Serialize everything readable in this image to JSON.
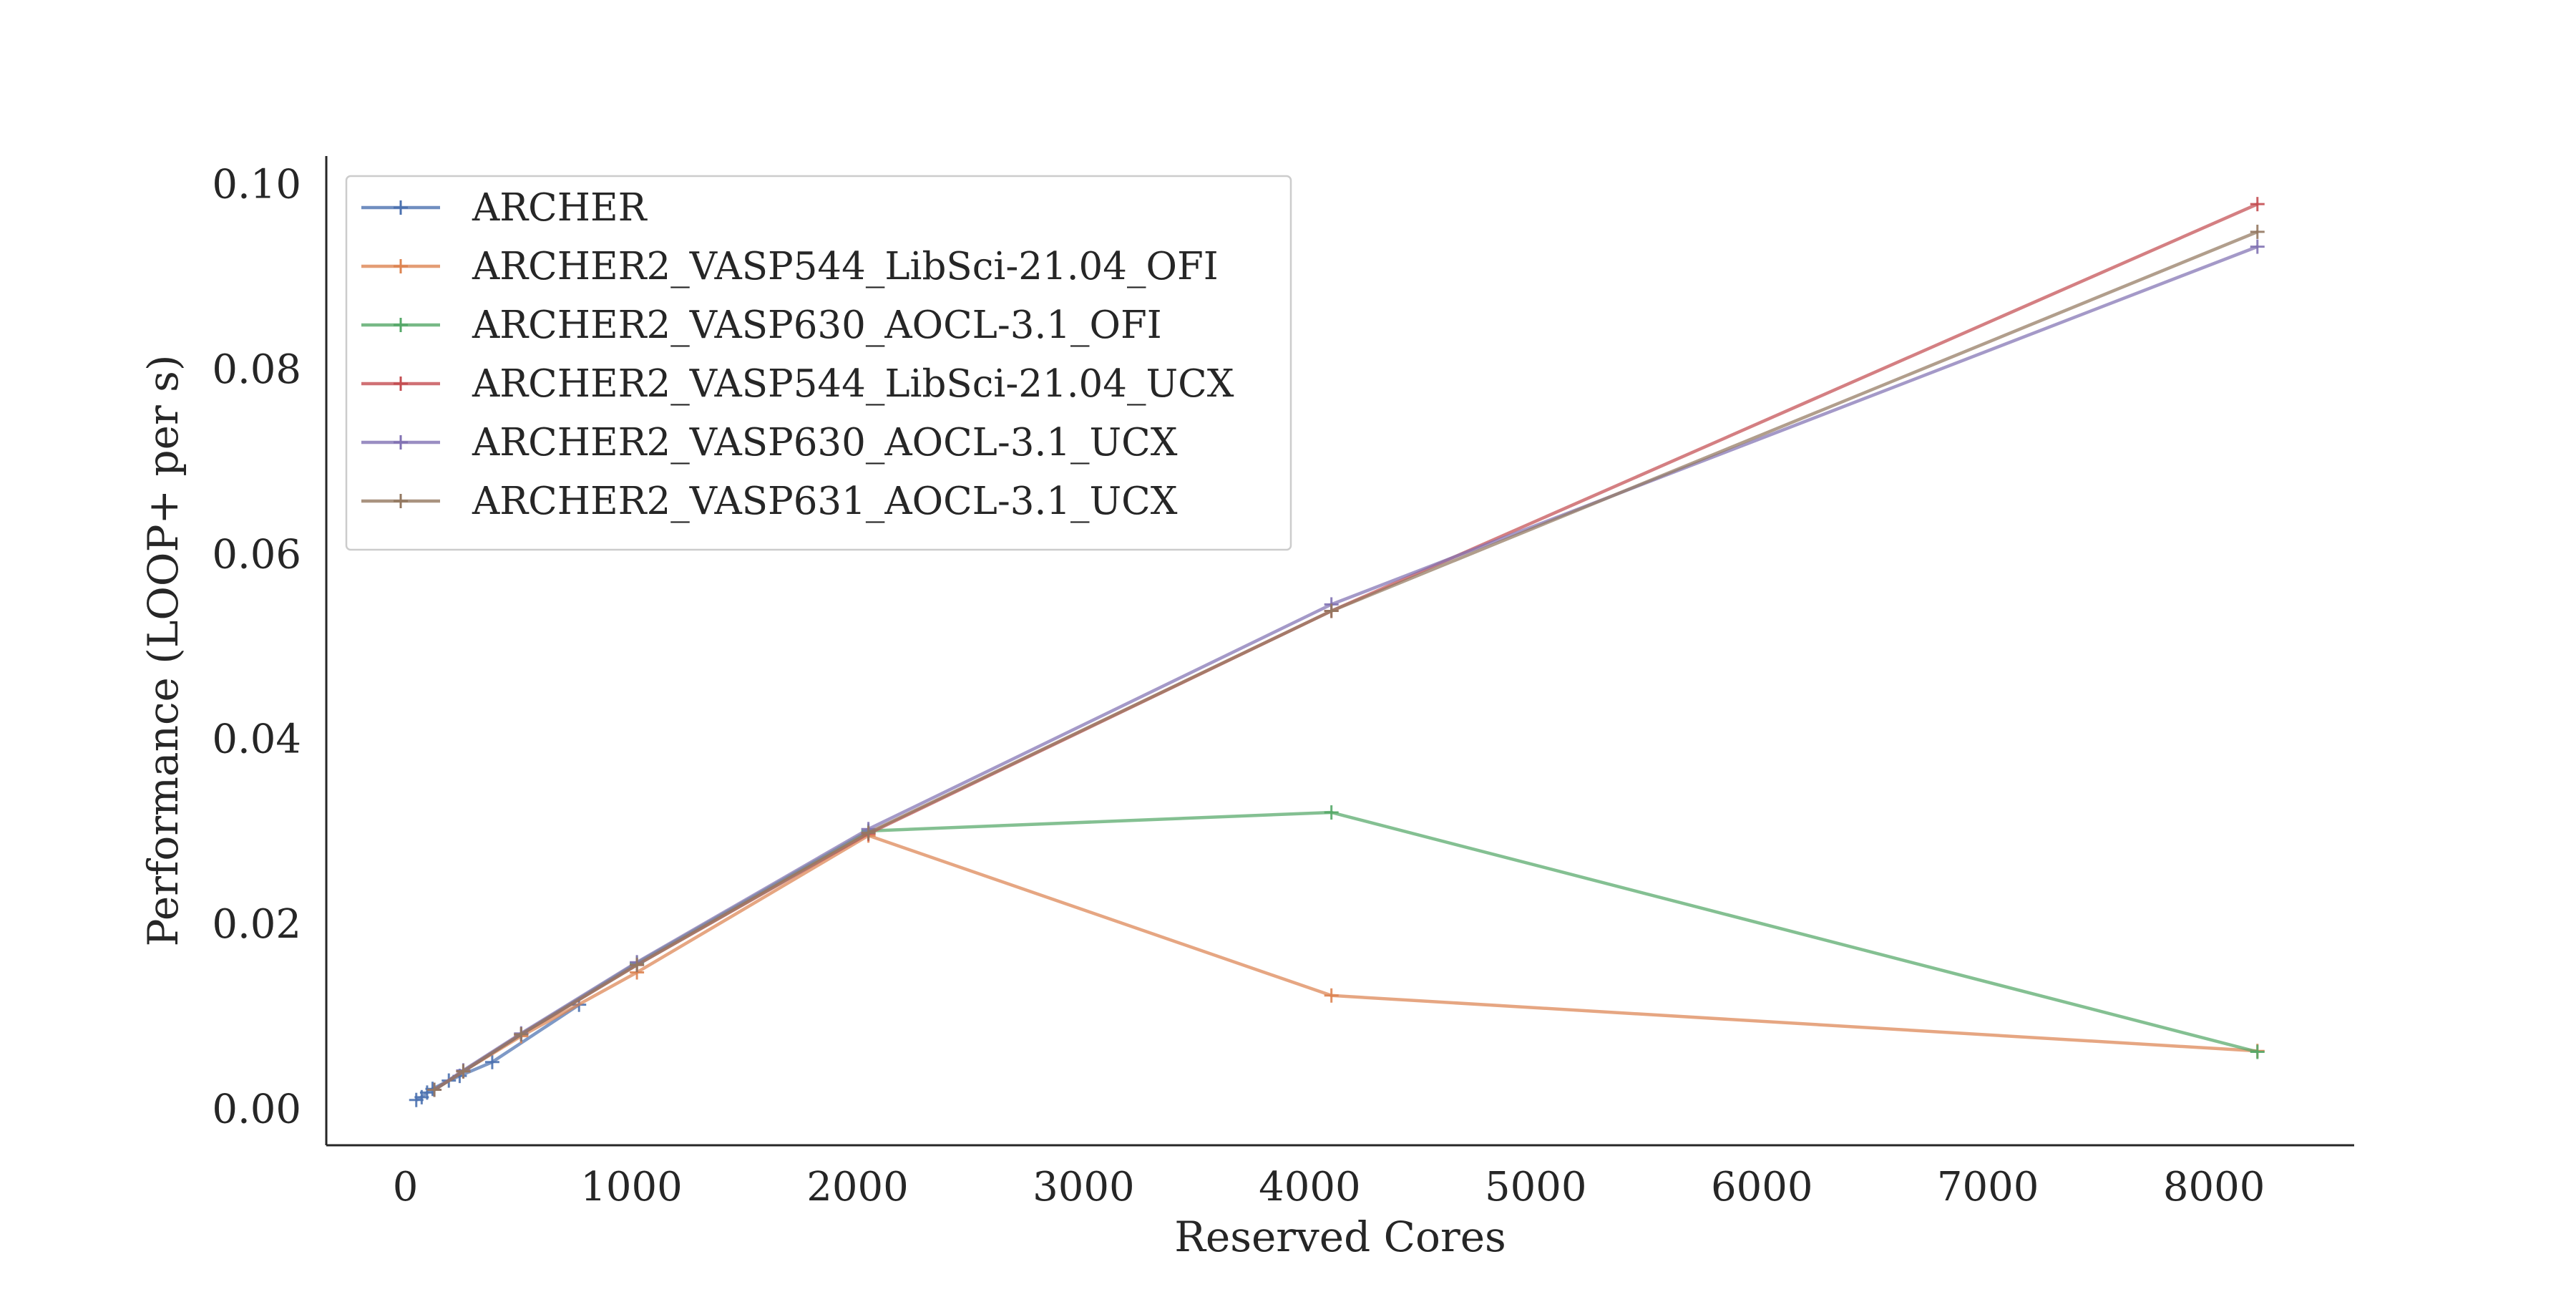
{
  "chart_data": {
    "type": "line",
    "title": "",
    "xlabel": "Reserved Cores",
    "ylabel": "Performance (LOOP+ per s)",
    "xlim": [
      -350,
      8620
    ],
    "ylim": [
      -0.004,
      0.103
    ],
    "xticks": [
      0,
      1000,
      2000,
      3000,
      4000,
      5000,
      6000,
      7000,
      8000
    ],
    "yticks": [
      0.0,
      0.02,
      0.04,
      0.06,
      0.08,
      0.1
    ],
    "ytick_labels": [
      "0.00",
      "0.02",
      "0.04",
      "0.06",
      "0.08",
      "0.10"
    ],
    "grid": false,
    "legend_position": "top-left",
    "marker": "plus",
    "series": [
      {
        "name": "ARCHER",
        "color": "#4c72b0",
        "x": [
          48,
          72,
          96,
          120,
          192,
          240,
          384,
          768
        ],
        "y": [
          0.0009,
          0.0012,
          0.0017,
          0.0021,
          0.003,
          0.0035,
          0.005,
          0.0112
        ]
      },
      {
        "name": "ARCHER2_VASP544_LibSci-21.04_OFI",
        "color": "#dd8452",
        "x": [
          128,
          256,
          512,
          1024,
          2048,
          4096,
          8192
        ],
        "y": [
          0.002,
          0.004,
          0.0078,
          0.0147,
          0.0295,
          0.0122,
          0.0062
        ]
      },
      {
        "name": "ARCHER2_VASP630_AOCL-3.1_OFI",
        "color": "#55a868",
        "x": [
          128,
          256,
          512,
          1024,
          2048,
          4096,
          8192
        ],
        "y": [
          0.002,
          0.004,
          0.008,
          0.0157,
          0.03,
          0.032,
          0.0061
        ]
      },
      {
        "name": "ARCHER2_VASP544_LibSci-21.04_UCX",
        "color": "#c44e52",
        "x": [
          128,
          256,
          512,
          1024,
          2048,
          4096,
          8192
        ],
        "y": [
          0.002,
          0.004,
          0.008,
          0.0155,
          0.0297,
          0.0538,
          0.0978
        ]
      },
      {
        "name": "ARCHER2_VASP630_AOCL-3.1_UCX",
        "color": "#8172b3",
        "x": [
          128,
          256,
          512,
          1024,
          2048,
          4096,
          8192
        ],
        "y": [
          0.002,
          0.0041,
          0.0081,
          0.0158,
          0.0302,
          0.0545,
          0.0932
        ]
      },
      {
        "name": "ARCHER2_VASP631_AOCL-3.1_UCX",
        "color": "#937860",
        "x": [
          128,
          256,
          512,
          1024,
          2048,
          4096,
          8192
        ],
        "y": [
          0.002,
          0.004,
          0.008,
          0.0155,
          0.0298,
          0.0538,
          0.0948
        ]
      }
    ]
  }
}
